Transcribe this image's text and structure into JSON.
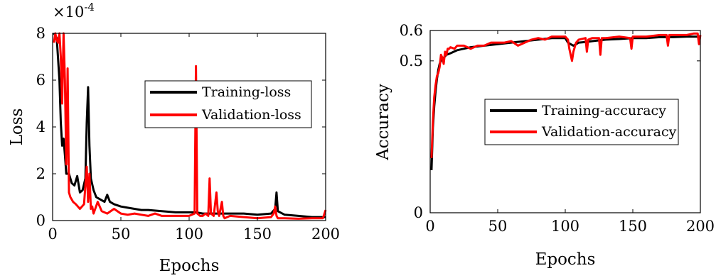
{
  "chart_data": [
    {
      "type": "line",
      "title": "",
      "xlabel": "Epochs",
      "ylabel": "Loss",
      "scale_label": "×10",
      "scale_exponent": "-4",
      "xlim": [
        0,
        200
      ],
      "ylim": [
        0,
        8
      ],
      "xticks": [
        "0",
        "50",
        "100",
        "150",
        "200"
      ],
      "yticks": [
        "0",
        "2",
        "4",
        "6",
        "8"
      ],
      "legend_position": "center-right",
      "grid": false,
      "series": [
        {
          "name": "Training-loss",
          "color": "#000000",
          "x": [
            1,
            3,
            5,
            6,
            7,
            8,
            9,
            10,
            12,
            14,
            16,
            18,
            20,
            22,
            24,
            25,
            26,
            27,
            28,
            30,
            32,
            35,
            38,
            40,
            42,
            45,
            50,
            55,
            60,
            65,
            70,
            80,
            90,
            100,
            105,
            110,
            120,
            130,
            140,
            150,
            160,
            163,
            164,
            165,
            170,
            180,
            190,
            200
          ],
          "y": [
            8,
            7.8,
            6,
            4.2,
            3.2,
            3.5,
            2.8,
            2.0,
            2.0,
            1.6,
            1.5,
            1.9,
            1.2,
            1.3,
            1.8,
            4.2,
            5.7,
            3.2,
            1.8,
            1.3,
            1.0,
            0.9,
            0.8,
            1.1,
            0.8,
            0.7,
            0.6,
            0.55,
            0.5,
            0.45,
            0.45,
            0.4,
            0.35,
            0.35,
            0.35,
            0.3,
            0.3,
            0.3,
            0.3,
            0.25,
            0.3,
            0.5,
            1.2,
            0.4,
            0.25,
            0.2,
            0.15,
            0.15
          ]
        },
        {
          "name": "Validation-loss",
          "color": "#ff0000",
          "x": [
            1,
            2,
            3,
            4,
            5,
            6,
            7,
            8,
            9,
            10,
            11,
            12,
            13,
            15,
            17,
            20,
            23,
            25,
            26,
            27,
            28,
            29,
            30,
            33,
            36,
            40,
            45,
            50,
            55,
            60,
            65,
            70,
            75,
            80,
            90,
            100,
            104,
            105,
            106,
            108,
            110,
            112,
            114,
            115,
            116,
            118,
            120,
            121,
            122,
            124,
            125,
            126,
            130,
            140,
            150,
            160,
            162,
            163,
            164,
            165,
            170,
            180,
            190,
            198,
            200
          ],
          "y": [
            7.6,
            8.0,
            7.7,
            7.6,
            8.0,
            7.0,
            5.0,
            8.0,
            6.0,
            2.4,
            6.5,
            1.2,
            1.0,
            0.8,
            0.7,
            0.5,
            0.7,
            2.3,
            0.8,
            2.0,
            0.5,
            0.6,
            0.3,
            0.8,
            0.4,
            0.3,
            0.5,
            0.3,
            0.25,
            0.3,
            0.25,
            0.2,
            0.3,
            0.2,
            0.2,
            0.2,
            0.3,
            6.6,
            0.3,
            0.2,
            0.2,
            0.3,
            0.2,
            1.8,
            0.3,
            0.2,
            1.2,
            0.4,
            0.2,
            0.8,
            0.2,
            0.1,
            0.2,
            0.15,
            0.1,
            0.15,
            0.3,
            0.6,
            0.2,
            0.1,
            0.1,
            0.08,
            0.1,
            0.1,
            0.45
          ]
        }
      ]
    },
    {
      "type": "line",
      "title": "",
      "xlabel": "Epochs",
      "ylabel": "Accuracy",
      "xlim": [
        0,
        200
      ],
      "ylim": [
        0,
        0.6
      ],
      "xticks": [
        "0",
        "50",
        "100",
        "150",
        "200"
      ],
      "yticks": [
        "0",
        "0.5",
        "0.6"
      ],
      "legend_position": "center-right",
      "grid": false,
      "series": [
        {
          "name": "Training-accuracy",
          "color": "#000000",
          "x": [
            1,
            2,
            3,
            4,
            5,
            6,
            7,
            8,
            10,
            12,
            15,
            20,
            25,
            30,
            40,
            50,
            60,
            70,
            80,
            90,
            100,
            102,
            104,
            106,
            108,
            110,
            115,
            120,
            130,
            140,
            150,
            160,
            170,
            180,
            190,
            200
          ],
          "y": [
            0.14,
            0.28,
            0.35,
            0.4,
            0.44,
            0.47,
            0.49,
            0.5,
            0.51,
            0.52,
            0.525,
            0.535,
            0.54,
            0.545,
            0.55,
            0.555,
            0.56,
            0.565,
            0.57,
            0.575,
            0.575,
            0.56,
            0.555,
            0.55,
            0.555,
            0.56,
            0.562,
            0.565,
            0.57,
            0.572,
            0.575,
            0.575,
            0.578,
            0.578,
            0.58,
            0.58
          ]
        },
        {
          "name": "Validation-accuracy",
          "color": "#ff0000",
          "x": [
            1,
            2,
            3,
            4,
            5,
            6,
            7,
            8,
            9,
            10,
            11,
            12,
            13,
            14,
            15,
            18,
            20,
            25,
            30,
            35,
            40,
            45,
            50,
            55,
            60,
            65,
            70,
            75,
            80,
            85,
            90,
            95,
            100,
            102,
            103,
            104,
            105,
            106,
            108,
            110,
            115,
            116,
            117,
            120,
            125,
            126,
            127,
            130,
            140,
            148,
            149,
            150,
            160,
            170,
            175,
            176,
            177,
            180,
            185,
            190,
            195,
            198,
            199,
            200
          ],
          "y": [
            0.18,
            0.3,
            0.38,
            0.42,
            0.45,
            0.46,
            0.48,
            0.52,
            0.51,
            0.49,
            0.53,
            0.52,
            0.54,
            0.54,
            0.545,
            0.54,
            0.55,
            0.55,
            0.54,
            0.55,
            0.55,
            0.56,
            0.56,
            0.56,
            0.565,
            0.55,
            0.56,
            0.57,
            0.575,
            0.57,
            0.58,
            0.58,
            0.58,
            0.57,
            0.54,
            0.52,
            0.5,
            0.53,
            0.56,
            0.57,
            0.575,
            0.53,
            0.57,
            0.575,
            0.575,
            0.52,
            0.575,
            0.575,
            0.58,
            0.575,
            0.54,
            0.58,
            0.58,
            0.585,
            0.585,
            0.55,
            0.585,
            0.585,
            0.585,
            0.585,
            0.59,
            0.59,
            0.555,
            0.585
          ]
        }
      ]
    }
  ]
}
